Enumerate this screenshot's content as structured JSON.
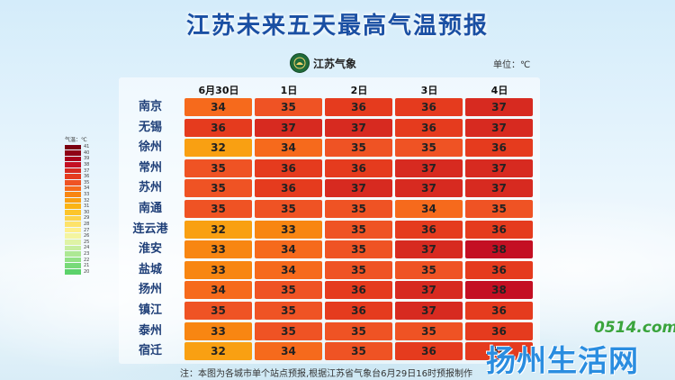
{
  "title": "江苏未来五天最高气温预报",
  "brand": {
    "name": "江苏气象",
    "logo_icon": "jiangsu-weather-logo-icon"
  },
  "unit_label": "单位：℃",
  "legend": {
    "title": "气温：℃",
    "entries": [
      {
        "label": "41",
        "color": "#7a0010"
      },
      {
        "label": "40",
        "color": "#8f0016"
      },
      {
        "label": "39",
        "color": "#a8001c"
      },
      {
        "label": "38",
        "color": "#c40f23"
      },
      {
        "label": "37",
        "color": "#d72a20"
      },
      {
        "label": "36",
        "color": "#e53b1e"
      },
      {
        "label": "35",
        "color": "#ef5324"
      },
      {
        "label": "34",
        "color": "#f66a1c"
      },
      {
        "label": "33",
        "color": "#f88612"
      },
      {
        "label": "32",
        "color": "#f9a012"
      },
      {
        "label": "31",
        "color": "#fbb414"
      },
      {
        "label": "30",
        "color": "#fcc52b"
      },
      {
        "label": "29",
        "color": "#fcd44a"
      },
      {
        "label": "28",
        "color": "#fde26a"
      },
      {
        "label": "27",
        "color": "#fdef8c"
      },
      {
        "label": "26",
        "color": "#f4f5a0"
      },
      {
        "label": "25",
        "color": "#dff3a6"
      },
      {
        "label": "24",
        "color": "#c7eea0"
      },
      {
        "label": "23",
        "color": "#ade894"
      },
      {
        "label": "22",
        "color": "#93e286"
      },
      {
        "label": "21",
        "color": "#77da78"
      },
      {
        "label": "20",
        "color": "#5bd26a"
      }
    ]
  },
  "chart_data": {
    "type": "heatmap",
    "title": "江苏未来五天最高气温预报",
    "columns": [
      "6月30日",
      "1日",
      "2日",
      "3日",
      "4日"
    ],
    "rows": [
      {
        "city": "南京",
        "values": [
          34,
          35,
          36,
          36,
          37
        ]
      },
      {
        "city": "无锡",
        "values": [
          36,
          37,
          37,
          36,
          37
        ]
      },
      {
        "city": "徐州",
        "values": [
          32,
          34,
          35,
          35,
          36
        ]
      },
      {
        "city": "常州",
        "values": [
          35,
          36,
          36,
          37,
          37
        ]
      },
      {
        "city": "苏州",
        "values": [
          35,
          36,
          37,
          37,
          37
        ]
      },
      {
        "city": "南通",
        "values": [
          35,
          35,
          35,
          34,
          35
        ]
      },
      {
        "city": "连云港",
        "values": [
          32,
          33,
          35,
          36,
          36
        ]
      },
      {
        "city": "淮安",
        "values": [
          33,
          34,
          35,
          37,
          38
        ]
      },
      {
        "city": "盐城",
        "values": [
          33,
          34,
          35,
          35,
          36
        ]
      },
      {
        "city": "扬州",
        "values": [
          34,
          35,
          36,
          37,
          38
        ]
      },
      {
        "city": "镇江",
        "values": [
          35,
          35,
          36,
          37,
          36
        ]
      },
      {
        "city": "泰州",
        "values": [
          33,
          35,
          35,
          35,
          36
        ]
      },
      {
        "city": "宿迁",
        "values": [
          32,
          34,
          35,
          36,
          36
        ]
      }
    ]
  },
  "note": "注：本图为各城市单个站点预报,根据江苏省气象台6月29日16时预报制作",
  "watermark": {
    "url": "0514.com",
    "name": "扬州生活网"
  }
}
